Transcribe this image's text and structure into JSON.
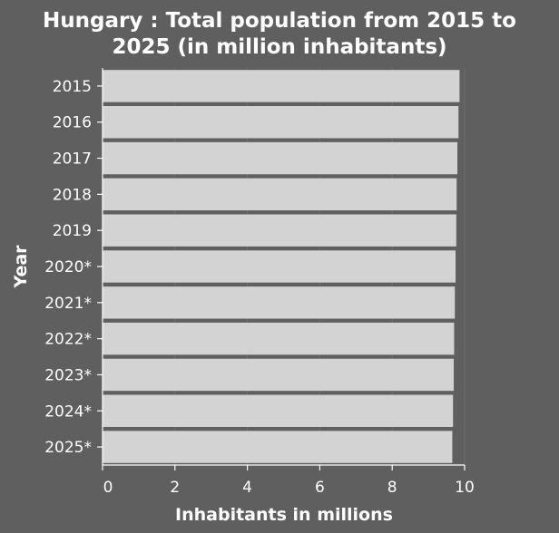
{
  "chart_data": {
    "type": "bar",
    "orientation": "horizontal",
    "title": "Hungary : Total population from 2015 to 2025 (in million inhabitants)",
    "title_lines": [
      "Hungary : Total population from 2015 to",
      "2025 (in million inhabitants)"
    ],
    "xlabel": "Inhabitants in millions",
    "ylabel": "Year",
    "xlim": [
      0,
      10
    ],
    "xticks": [
      0,
      2,
      4,
      6,
      8,
      10
    ],
    "categories": [
      "2015",
      "2016",
      "2017",
      "2018",
      "2019",
      "2020*",
      "2021*",
      "2022*",
      "2023*",
      "2024*",
      "2025*"
    ],
    "values": [
      9.86,
      9.83,
      9.8,
      9.78,
      9.77,
      9.75,
      9.73,
      9.71,
      9.7,
      9.68,
      9.66
    ],
    "grid": true,
    "legend": "none",
    "colors": {
      "background": "#5f5f5f",
      "plot_background": "#5f5f5f",
      "bar": "#d3d3d3",
      "grid": "#6e6e6e",
      "text": "#ffffff",
      "axis": "#ffffff"
    }
  }
}
